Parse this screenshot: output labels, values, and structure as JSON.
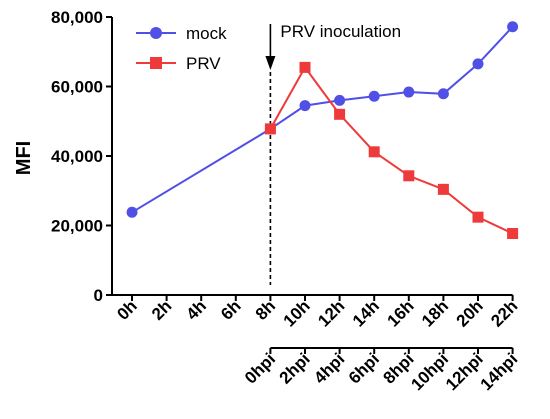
{
  "chart_data": {
    "type": "line",
    "title": "",
    "ylabel": "MFI",
    "xlabel": "",
    "ylim": [
      0,
      80000
    ],
    "yticks": [
      0,
      20000,
      40000,
      60000,
      80000
    ],
    "ytick_labels": [
      "0",
      "20,000",
      "40,000",
      "60,000",
      "80,000"
    ],
    "categories": [
      "0h",
      "2h",
      "4h",
      "6h",
      "8h",
      "10h",
      "12h",
      "14h",
      "16h",
      "18h",
      "20h",
      "22h"
    ],
    "secondary_axis_labels": [
      "0hpi",
      "2hpi",
      "4hpi",
      "6hpi",
      "8hpi",
      "10hpi",
      "12hpi",
      "14hpi"
    ],
    "secondary_axis_start": "8h",
    "annotation": {
      "text": "PRV inoculation",
      "at": "8h"
    },
    "legend": "top-left",
    "series": [
      {
        "name": "mock",
        "color": "#5050e6",
        "marker": "circle",
        "x": [
          "0h",
          "8h",
          "10h",
          "12h",
          "14h",
          "16h",
          "18h",
          "20h",
          "22h"
        ],
        "values": [
          23800,
          47800,
          54500,
          56000,
          57200,
          58400,
          57900,
          66500,
          77200
        ]
      },
      {
        "name": "PRV",
        "color": "#ee3a3a",
        "marker": "square",
        "x": [
          "8h",
          "10h",
          "12h",
          "14h",
          "16h",
          "18h",
          "20h",
          "22h"
        ],
        "values": [
          47800,
          65500,
          52000,
          41200,
          34300,
          30400,
          22400,
          17700
        ]
      }
    ]
  }
}
